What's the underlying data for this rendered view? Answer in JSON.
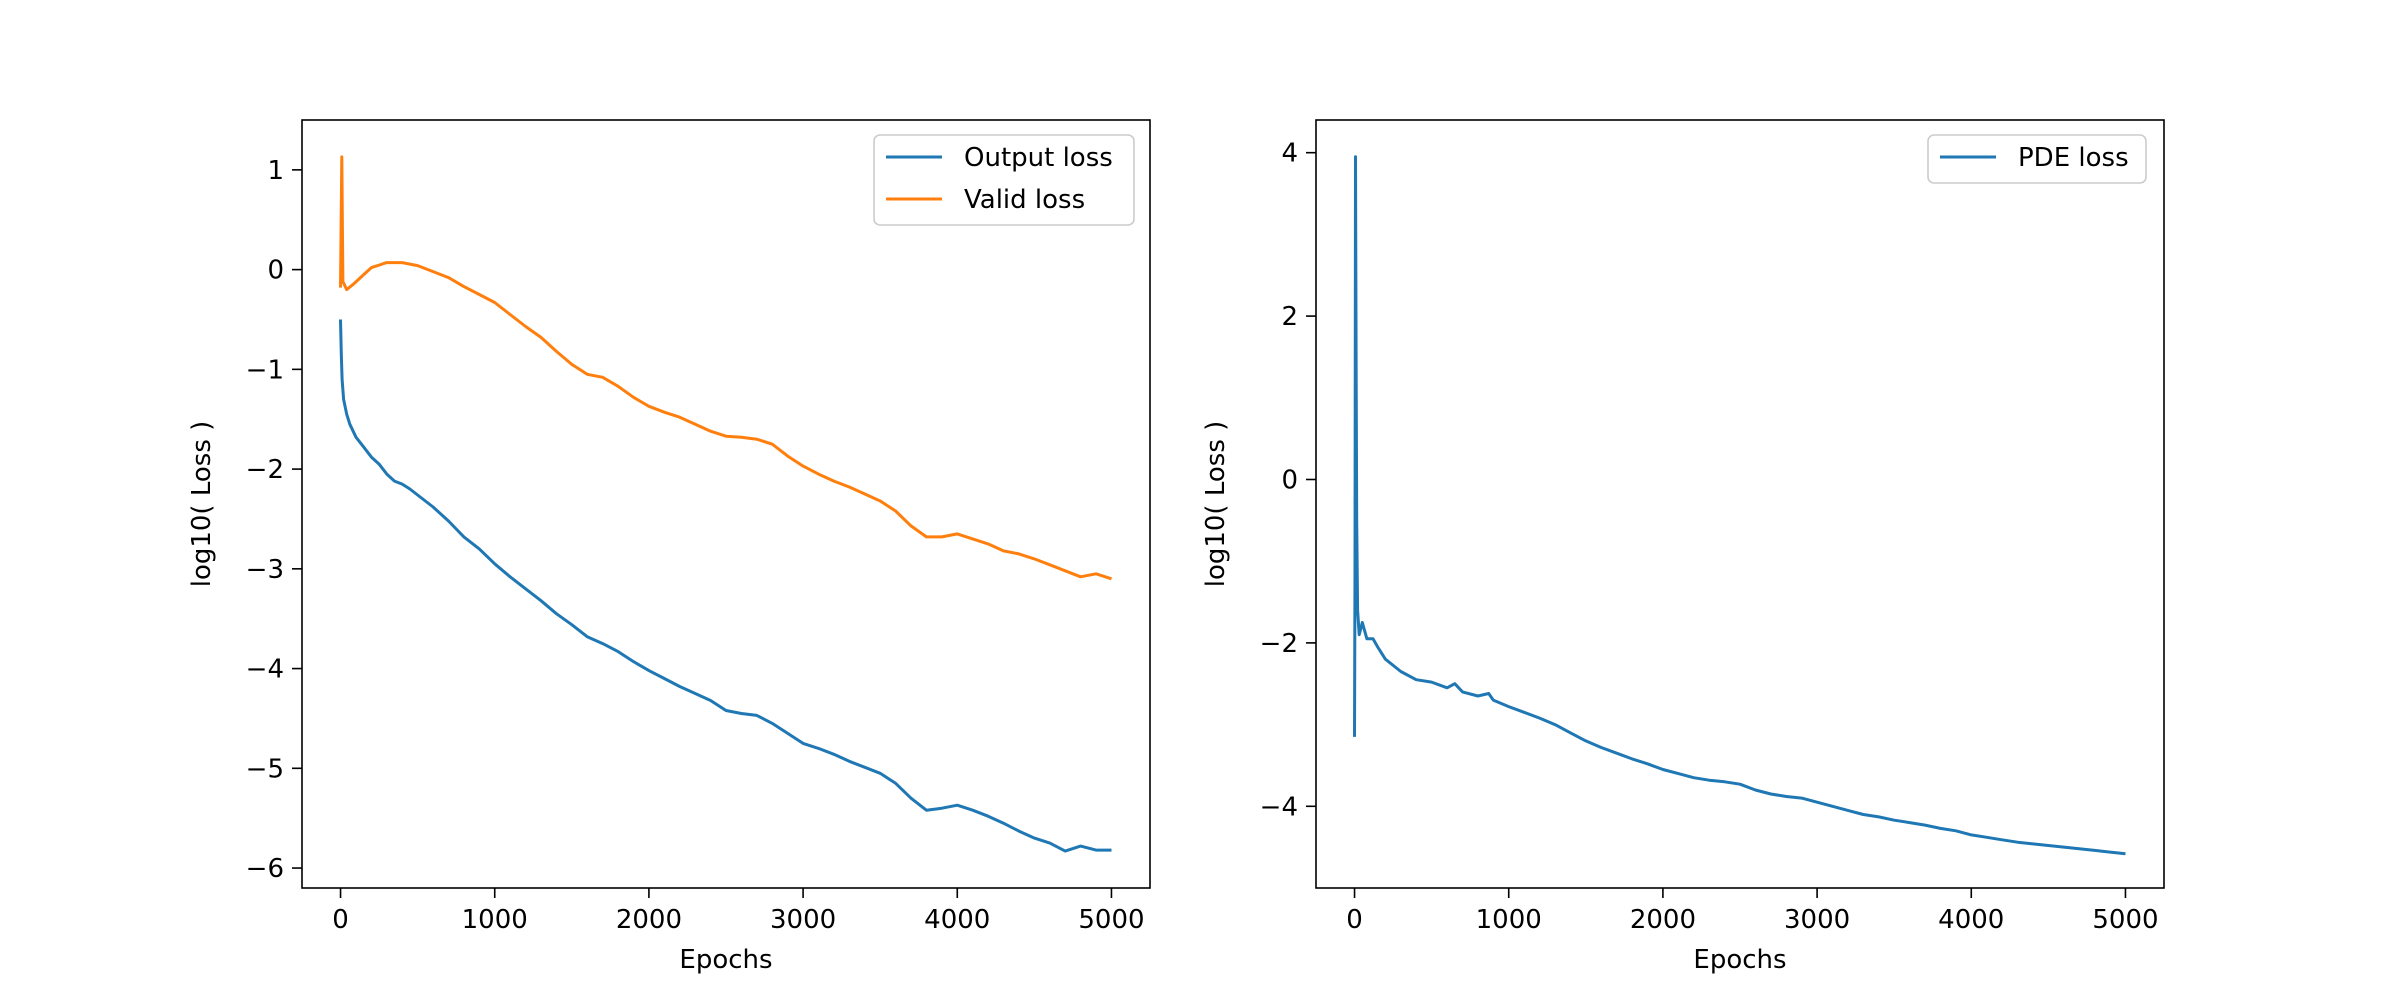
{
  "chart_data": [
    {
      "type": "line",
      "title": "",
      "xlabel": "Epochs",
      "ylabel": "log10( Loss )",
      "xlim": [
        -250,
        5250
      ],
      "ylim": [
        -6.2,
        1.5
      ],
      "xticks": [
        0,
        1000,
        2000,
        3000,
        4000,
        5000
      ],
      "xtick_labels": [
        "0",
        "1000",
        "2000",
        "3000",
        "4000",
        "5000"
      ],
      "yticks": [
        1,
        0,
        -1,
        -2,
        -3,
        -4,
        -5,
        -6
      ],
      "ytick_labels": [
        "1",
        "0",
        "−1",
        "−2",
        "−3",
        "−4",
        "−5",
        "−6"
      ],
      "grid": false,
      "legend_position": "top-right",
      "series": [
        {
          "name": "Output loss",
          "color": "#1f77b4",
          "points": [
            [
              0,
              -0.5
            ],
            [
              5,
              -0.85
            ],
            [
              10,
              -1.1
            ],
            [
              20,
              -1.3
            ],
            [
              40,
              -1.45
            ],
            [
              60,
              -1.55
            ],
            [
              100,
              -1.68
            ],
            [
              150,
              -1.78
            ],
            [
              200,
              -1.88
            ],
            [
              250,
              -1.95
            ],
            [
              300,
              -2.05
            ],
            [
              350,
              -2.12
            ],
            [
              400,
              -2.15
            ],
            [
              450,
              -2.2
            ],
            [
              500,
              -2.26
            ],
            [
              600,
              -2.38
            ],
            [
              700,
              -2.52
            ],
            [
              800,
              -2.68
            ],
            [
              900,
              -2.8
            ],
            [
              1000,
              -2.95
            ],
            [
              1100,
              -3.08
            ],
            [
              1200,
              -3.2
            ],
            [
              1300,
              -3.32
            ],
            [
              1400,
              -3.45
            ],
            [
              1500,
              -3.56
            ],
            [
              1600,
              -3.68
            ],
            [
              1700,
              -3.75
            ],
            [
              1800,
              -3.83
            ],
            [
              1900,
              -3.93
            ],
            [
              2000,
              -4.02
            ],
            [
              2100,
              -4.1
            ],
            [
              2200,
              -4.18
            ],
            [
              2300,
              -4.25
            ],
            [
              2400,
              -4.32
            ],
            [
              2500,
              -4.42
            ],
            [
              2600,
              -4.45
            ],
            [
              2700,
              -4.47
            ],
            [
              2800,
              -4.55
            ],
            [
              2900,
              -4.65
            ],
            [
              3000,
              -4.75
            ],
            [
              3100,
              -4.8
            ],
            [
              3200,
              -4.86
            ],
            [
              3300,
              -4.93
            ],
            [
              3400,
              -4.99
            ],
            [
              3500,
              -5.05
            ],
            [
              3600,
              -5.15
            ],
            [
              3700,
              -5.3
            ],
            [
              3800,
              -5.42
            ],
            [
              3900,
              -5.4
            ],
            [
              4000,
              -5.37
            ],
            [
              4100,
              -5.42
            ],
            [
              4200,
              -5.48
            ],
            [
              4300,
              -5.55
            ],
            [
              4400,
              -5.63
            ],
            [
              4500,
              -5.7
            ],
            [
              4600,
              -5.75
            ],
            [
              4700,
              -5.83
            ],
            [
              4800,
              -5.78
            ],
            [
              4900,
              -5.82
            ],
            [
              5000,
              -5.82
            ]
          ]
        },
        {
          "name": "Valid loss",
          "color": "#ff7f0e",
          "points": [
            [
              0,
              -0.18
            ],
            [
              8,
              1.13
            ],
            [
              15,
              -0.12
            ],
            [
              40,
              -0.2
            ],
            [
              80,
              -0.15
            ],
            [
              150,
              -0.05
            ],
            [
              200,
              0.02
            ],
            [
              300,
              0.07
            ],
            [
              400,
              0.07
            ],
            [
              500,
              0.04
            ],
            [
              600,
              -0.02
            ],
            [
              700,
              -0.08
            ],
            [
              800,
              -0.17
            ],
            [
              900,
              -0.25
            ],
            [
              1000,
              -0.33
            ],
            [
              1100,
              -0.45
            ],
            [
              1200,
              -0.57
            ],
            [
              1300,
              -0.68
            ],
            [
              1400,
              -0.82
            ],
            [
              1500,
              -0.95
            ],
            [
              1600,
              -1.05
            ],
            [
              1700,
              -1.08
            ],
            [
              1800,
              -1.17
            ],
            [
              1900,
              -1.28
            ],
            [
              2000,
              -1.37
            ],
            [
              2100,
              -1.43
            ],
            [
              2200,
              -1.48
            ],
            [
              2300,
              -1.55
            ],
            [
              2400,
              -1.62
            ],
            [
              2500,
              -1.67
            ],
            [
              2600,
              -1.68
            ],
            [
              2700,
              -1.7
            ],
            [
              2800,
              -1.75
            ],
            [
              2900,
              -1.87
            ],
            [
              3000,
              -1.97
            ],
            [
              3100,
              -2.05
            ],
            [
              3200,
              -2.12
            ],
            [
              3300,
              -2.18
            ],
            [
              3400,
              -2.25
            ],
            [
              3500,
              -2.32
            ],
            [
              3600,
              -2.42
            ],
            [
              3700,
              -2.57
            ],
            [
              3800,
              -2.68
            ],
            [
              3900,
              -2.68
            ],
            [
              4000,
              -2.65
            ],
            [
              4100,
              -2.7
            ],
            [
              4200,
              -2.75
            ],
            [
              4300,
              -2.82
            ],
            [
              4400,
              -2.85
            ],
            [
              4500,
              -2.9
            ],
            [
              4600,
              -2.96
            ],
            [
              4700,
              -3.02
            ],
            [
              4800,
              -3.08
            ],
            [
              4900,
              -3.05
            ],
            [
              5000,
              -3.1
            ]
          ]
        }
      ]
    },
    {
      "type": "line",
      "title": "",
      "xlabel": "Epochs",
      "ylabel": "log10( Loss )",
      "xlim": [
        -250,
        5250
      ],
      "ylim": [
        -5.0,
        4.4
      ],
      "xticks": [
        0,
        1000,
        2000,
        3000,
        4000,
        5000
      ],
      "xtick_labels": [
        "0",
        "1000",
        "2000",
        "3000",
        "4000",
        "5000"
      ],
      "yticks": [
        4,
        2,
        0,
        -2,
        -4
      ],
      "ytick_labels": [
        "4",
        "2",
        "0",
        "−2",
        "−4"
      ],
      "grid": false,
      "legend_position": "top-right",
      "series": [
        {
          "name": "PDE loss",
          "color": "#1f77b4",
          "points": [
            [
              0,
              -3.15
            ],
            [
              3,
              -1.1
            ],
            [
              6,
              3.95
            ],
            [
              10,
              1.5
            ],
            [
              14,
              -0.5
            ],
            [
              20,
              -1.6
            ],
            [
              30,
              -1.9
            ],
            [
              50,
              -1.75
            ],
            [
              80,
              -1.95
            ],
            [
              120,
              -1.95
            ],
            [
              150,
              -2.05
            ],
            [
              200,
              -2.2
            ],
            [
              300,
              -2.35
            ],
            [
              400,
              -2.45
            ],
            [
              500,
              -2.48
            ],
            [
              600,
              -2.55
            ],
            [
              650,
              -2.5
            ],
            [
              700,
              -2.6
            ],
            [
              800,
              -2.65
            ],
            [
              870,
              -2.62
            ],
            [
              900,
              -2.7
            ],
            [
              1000,
              -2.78
            ],
            [
              1100,
              -2.85
            ],
            [
              1200,
              -2.92
            ],
            [
              1300,
              -3.0
            ],
            [
              1400,
              -3.1
            ],
            [
              1500,
              -3.2
            ],
            [
              1600,
              -3.28
            ],
            [
              1700,
              -3.35
            ],
            [
              1800,
              -3.42
            ],
            [
              1900,
              -3.48
            ],
            [
              2000,
              -3.55
            ],
            [
              2100,
              -3.6
            ],
            [
              2200,
              -3.65
            ],
            [
              2300,
              -3.68
            ],
            [
              2400,
              -3.7
            ],
            [
              2500,
              -3.73
            ],
            [
              2600,
              -3.8
            ],
            [
              2700,
              -3.85
            ],
            [
              2800,
              -3.88
            ],
            [
              2900,
              -3.9
            ],
            [
              3000,
              -3.95
            ],
            [
              3100,
              -4.0
            ],
            [
              3200,
              -4.05
            ],
            [
              3300,
              -4.1
            ],
            [
              3400,
              -4.13
            ],
            [
              3500,
              -4.17
            ],
            [
              3600,
              -4.2
            ],
            [
              3700,
              -4.23
            ],
            [
              3800,
              -4.27
            ],
            [
              3900,
              -4.3
            ],
            [
              4000,
              -4.35
            ],
            [
              4100,
              -4.38
            ],
            [
              4200,
              -4.41
            ],
            [
              4300,
              -4.44
            ],
            [
              4400,
              -4.46
            ],
            [
              4500,
              -4.48
            ],
            [
              4600,
              -4.5
            ],
            [
              4700,
              -4.52
            ],
            [
              4800,
              -4.54
            ],
            [
              4900,
              -4.56
            ],
            [
              5000,
              -4.58
            ]
          ]
        }
      ]
    }
  ]
}
